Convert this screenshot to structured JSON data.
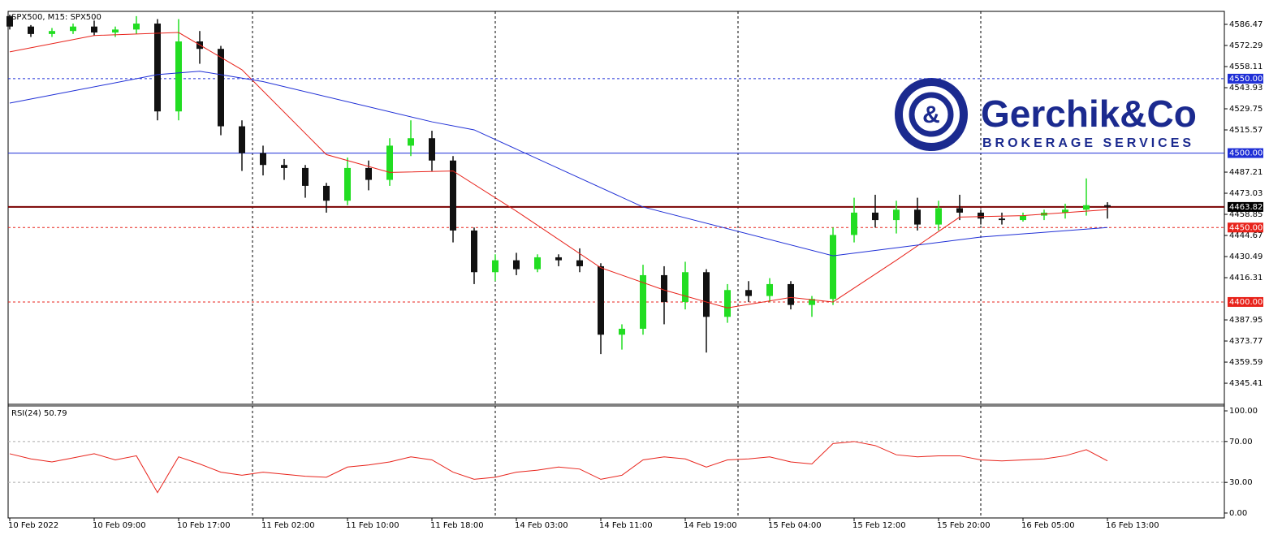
{
  "chart_data": [
    {
      "type": "candlestick",
      "title": "SPX500, M15:  SPX500",
      "logo": {
        "name": "Gerchik&Co",
        "tagline": "BROKERAGE SERVICES"
      },
      "categories": [
        "10 Feb 2022",
        null,
        null,
        null,
        "10 Feb 09:00",
        null,
        null,
        null,
        "10 Feb 17:00",
        null,
        null,
        null,
        "11 Feb 02:00",
        null,
        null,
        null,
        "11 Feb 10:00",
        null,
        null,
        null,
        "11 Feb 18:00",
        null,
        null,
        null,
        "14 Feb 03:00",
        null,
        null,
        null,
        "14 Feb 11:00",
        null,
        null,
        null,
        "14 Feb 19:00",
        null,
        null,
        null,
        "15 Feb 04:00",
        null,
        null,
        null,
        "15 Feb 12:00",
        null,
        null,
        null,
        "15 Feb 20:00",
        null,
        null,
        null,
        "16 Feb 05:00",
        null,
        null,
        null,
        "16 Feb 13:00"
      ],
      "open": [
        4592,
        4585,
        4580,
        4582,
        4585,
        4581,
        4583,
        4587,
        4528,
        4575,
        4570,
        4518,
        4500,
        4492,
        4490,
        4478,
        4468,
        4490,
        4482,
        4505,
        4510,
        4495,
        4448,
        4420,
        4428,
        4422,
        4430,
        4428,
        4424,
        4378,
        4382,
        4418,
        4400,
        4420,
        4390,
        4408,
        4404,
        4412,
        4398,
        4402,
        4445,
        4460,
        4455,
        4462,
        4452,
        4463,
        4460,
        4456,
        4455,
        4458,
        4460,
        4462,
        4465
      ],
      "high": [
        4593,
        4586,
        4584,
        4587,
        4589,
        4585,
        4592,
        4590,
        4590,
        4582,
        4572,
        4522,
        4505,
        4496,
        4492,
        4480,
        4497,
        4495,
        4510,
        4522,
        4515,
        4498,
        4450,
        4432,
        4433,
        4432,
        4432,
        4436,
        4426,
        4385,
        4425,
        4424,
        4427,
        4422,
        4412,
        4414,
        4416,
        4414,
        4404,
        4450,
        4470,
        4472,
        4468,
        4470,
        4468,
        4472,
        4462,
        4460,
        4460,
        4462,
        4466,
        4483,
        4467
      ],
      "low": [
        4583,
        4578,
        4578,
        4580,
        4579,
        4578,
        4580,
        4522,
        4522,
        4560,
        4512,
        4488,
        4485,
        4482,
        4470,
        4460,
        4465,
        4475,
        4478,
        4498,
        4488,
        4440,
        4412,
        4414,
        4418,
        4420,
        4424,
        4420,
        4365,
        4368,
        4378,
        4385,
        4395,
        4366,
        4386,
        4400,
        4400,
        4395,
        4390,
        4398,
        4440,
        4450,
        4446,
        4448,
        4448,
        4455,
        4452,
        4452,
        4454,
        4455,
        4456,
        4458,
        4456
      ],
      "close": [
        4585,
        4580,
        4582,
        4585,
        4581,
        4583,
        4587,
        4528,
        4575,
        4570,
        4518,
        4500,
        4492,
        4490,
        4478,
        4468,
        4490,
        4482,
        4505,
        4510,
        4495,
        4448,
        4420,
        4428,
        4422,
        4430,
        4428,
        4424,
        4378,
        4382,
        4418,
        4400,
        4420,
        4390,
        4408,
        4404,
        4412,
        4398,
        4402,
        4445,
        4460,
        4455,
        4462,
        4452,
        4463,
        4460,
        4456,
        4455,
        4458,
        4460,
        4462,
        4465,
        4464
      ],
      "bull_color": "#22dd22",
      "bear_color": "#111111",
      "moving_averages": [
        {
          "color": "#e8231b",
          "x": [
            0,
            4,
            8,
            11,
            15,
            18,
            21,
            24,
            28,
            31,
            34,
            37,
            39,
            42,
            45,
            48,
            52
          ],
          "values": [
            4568,
            4579,
            4581,
            4556,
            4499,
            4487,
            4488,
            4461,
            4423,
            4408,
            4396,
            4403,
            4400,
            4428,
            4457,
            4458,
            4462
          ]
        },
        {
          "color": "#1f2fd6",
          "x": [
            0,
            7,
            9,
            12,
            20,
            22,
            30,
            39,
            46,
            52
          ],
          "values": [
            4533.6,
            4552.7,
            4555,
            4548,
            4521,
            4515.6,
            4463.8,
            4431,
            4443.6,
            4450
          ]
        }
      ],
      "levels": [
        {
          "value": 4550,
          "label": "4550.00",
          "color": "#1f2fd6",
          "style": "dotted"
        },
        {
          "value": 4500,
          "label": "4500.00",
          "color": "#1f2fd6",
          "style": "solid"
        },
        {
          "value": 4463.82,
          "label": "4463.82",
          "color": "#000000",
          "line_color": "#7a0000",
          "style": "solid"
        },
        {
          "value": 4450,
          "label": "4450.00",
          "color": "#e8231b",
          "style": "dotted"
        },
        {
          "value": 4400,
          "label": "4400.00",
          "color": "#e8231b",
          "style": "dotted"
        }
      ],
      "ylim": [
        4331.8,
        4595.2
      ],
      "yticks": [
        4586.47,
        4572.29,
        4558.11,
        4543.93,
        4529.75,
        4515.57,
        4487.21,
        4473.03,
        4458.85,
        4444.67,
        4430.49,
        4416.31,
        4387.95,
        4373.77,
        4359.59,
        4345.41
      ]
    },
    {
      "type": "line",
      "title": "RSI(24) 50.79",
      "color": "#e8231b",
      "values": [
        58,
        53,
        50,
        54,
        58,
        52,
        56,
        20,
        55,
        48,
        40,
        37,
        40,
        38,
        36,
        35,
        45,
        47,
        50,
        55,
        52,
        40,
        33,
        35,
        40,
        42,
        45,
        43,
        33,
        37,
        52,
        55,
        53,
        45,
        52,
        53,
        55,
        50,
        48,
        68,
        70,
        66,
        57,
        55,
        56,
        56,
        52,
        51,
        52,
        53,
        56,
        62,
        51
      ],
      "ylim": [
        -4.8,
        104.8
      ],
      "yticks": [
        {
          "value": 100,
          "label": "100.00"
        },
        {
          "value": 70,
          "label": "70.00"
        },
        {
          "value": 30,
          "label": "30.00"
        },
        {
          "value": 0,
          "label": "0.00"
        }
      ],
      "guides": [
        70,
        30
      ]
    }
  ]
}
